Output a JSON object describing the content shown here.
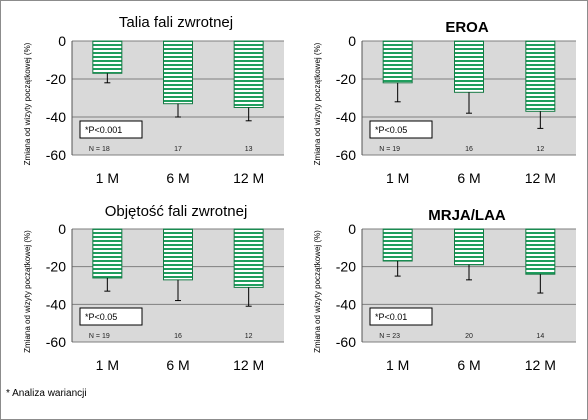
{
  "footnote": "* Analiza wariancji",
  "chart_data": [
    {
      "type": "bar",
      "title": "Talia fali zwrotnej",
      "title_bold": false,
      "ylabel": "Zmiana od wizyty początkowej (%)",
      "categories": [
        "1 M",
        "6 M",
        "12 M"
      ],
      "values": [
        -17,
        -33,
        -35
      ],
      "error_low": [
        -22,
        -40,
        -42
      ],
      "n_labels": [
        "N = 18",
        "17",
        "13"
      ],
      "p_value": "*P<0.001",
      "yticks": [
        "0",
        "-20",
        "-40",
        "-60"
      ],
      "ylim": [
        -60,
        0
      ]
    },
    {
      "type": "bar",
      "title": "EROA",
      "title_bold": true,
      "ylabel": "Zmiana od wizyty początkowej (%)",
      "categories": [
        "1 M",
        "6 M",
        "12 M"
      ],
      "values": [
        -22,
        -27,
        -37
      ],
      "error_low": [
        -32,
        -38,
        -46
      ],
      "n_labels": [
        "N = 19",
        "16",
        "12"
      ],
      "p_value": "*P<0.05",
      "yticks": [
        "0",
        "-20",
        "-40",
        "-60"
      ],
      "ylim": [
        -60,
        0
      ]
    },
    {
      "type": "bar",
      "title": "Objętość fali zwrotnej",
      "title_bold": false,
      "ylabel": "Zmiana od wizyty początkowej (%)",
      "categories": [
        "1 M",
        "6 M",
        "12 M"
      ],
      "values": [
        -26,
        -27,
        -31
      ],
      "error_low": [
        -33,
        -38,
        -41
      ],
      "n_labels": [
        "N = 19",
        "16",
        "12"
      ],
      "p_value": "*P<0.05",
      "yticks": [
        "0",
        "-20",
        "-40",
        "-60"
      ],
      "ylim": [
        -60,
        0
      ]
    },
    {
      "type": "bar",
      "title": "MRJA/LAA",
      "title_bold": true,
      "ylabel": "Zmiana od wizyty początkowej (%)",
      "categories": [
        "1 M",
        "6 M",
        "12 M"
      ],
      "values": [
        -17,
        -19,
        -24
      ],
      "error_low": [
        -25,
        -27,
        -34
      ],
      "n_labels": [
        "N = 23",
        "20",
        "14"
      ],
      "p_value": "*P<0.01",
      "yticks": [
        "0",
        "-20",
        "-40",
        "-60"
      ],
      "ylim": [
        -60,
        0
      ]
    }
  ],
  "colors": {
    "plot_bg": "#d9d9d9",
    "bar_stripe": "#1f9e5e",
    "bar_gap": "#ffffff",
    "bar_edge": "#167a45",
    "grid": "#7f7f7f"
  }
}
